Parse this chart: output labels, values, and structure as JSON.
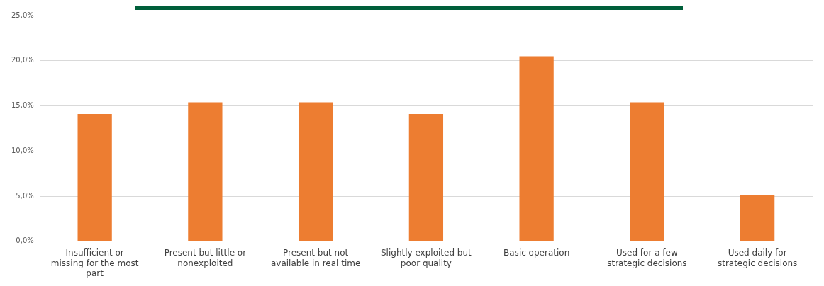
{
  "chart_data": {
    "type": "bar",
    "categories": [
      "Insufficient or missing for the most part",
      "Present but little or nonexploited",
      "Present but not available in real time",
      "Slightly exploited but poor quality",
      "Basic operation",
      "Used for a few strategic decisions",
      "Used daily for strategic decisions"
    ],
    "values": [
      14.1,
      15.4,
      15.4,
      14.1,
      20.5,
      15.4,
      5.1
    ],
    "color": "#ed7d31",
    "ylim": [
      0,
      25
    ],
    "yticks": [
      {
        "value": 0,
        "label": "0,0%"
      },
      {
        "value": 5,
        "label": "5,0%"
      },
      {
        "value": 10,
        "label": "10,0%"
      },
      {
        "value": 15,
        "label": "15,0%"
      },
      {
        "value": 20,
        "label": "20,0%"
      },
      {
        "value": 25,
        "label": "25,0%"
      }
    ],
    "grid": "y",
    "legend": false
  }
}
